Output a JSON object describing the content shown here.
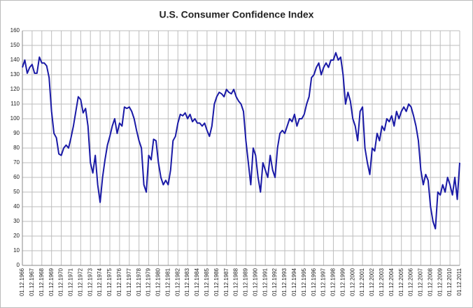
{
  "chart_data": {
    "type": "line",
    "title": "U.S. Consumer Confidence Index",
    "color": "#1a1aa6",
    "grid": true,
    "ylim": [
      0,
      160
    ],
    "yticks": [
      0,
      10,
      20,
      30,
      40,
      50,
      60,
      70,
      80,
      90,
      100,
      110,
      120,
      130,
      140,
      150,
      160
    ],
    "categories": [
      "01.12.1966",
      null,
      null,
      null,
      "01.12.1967",
      null,
      null,
      null,
      "01.12.1968",
      null,
      null,
      null,
      "01.12.1969",
      null,
      null,
      null,
      "01.12.1970",
      null,
      null,
      null,
      "01.12.1971",
      null,
      null,
      null,
      "01.12.1972",
      null,
      null,
      null,
      "01.12.1973",
      null,
      null,
      null,
      "01.12.1974",
      null,
      null,
      null,
      "01.12.1975",
      null,
      null,
      null,
      "01.12.1976",
      null,
      null,
      null,
      "01.12.1977",
      null,
      null,
      null,
      "01.12.1978",
      null,
      null,
      null,
      "01.12.1979",
      null,
      null,
      null,
      "01.12.1980",
      null,
      null,
      null,
      "01.12.1981",
      null,
      null,
      null,
      "01.12.1982",
      null,
      null,
      null,
      "01.12.1983",
      null,
      null,
      null,
      "01.12.1984",
      null,
      null,
      null,
      "01.12.1985",
      null,
      null,
      null,
      "01.12.1986",
      null,
      null,
      null,
      "01.12.1987",
      null,
      null,
      null,
      "01.12.1988",
      null,
      null,
      null,
      "01.12.1989",
      null,
      null,
      null,
      "01.12.1990",
      null,
      null,
      null,
      "01.12.1991",
      null,
      null,
      null,
      "01.12.1992",
      null,
      null,
      null,
      "01.12.1993",
      null,
      null,
      null,
      "01.12.1994",
      null,
      null,
      null,
      "01.12.1995",
      null,
      null,
      null,
      "01.12.1996",
      null,
      null,
      null,
      "01.12.1997",
      null,
      null,
      null,
      "01.12.1998",
      null,
      null,
      null,
      "01.12.1999",
      null,
      null,
      null,
      "01.12.2000",
      null,
      null,
      null,
      "01.12.2001",
      null,
      null,
      null,
      "01.12.2002",
      null,
      null,
      null,
      "01.12.2003",
      null,
      null,
      null,
      "01.12.2004",
      null,
      null,
      null,
      "01.12.2005",
      null,
      null,
      null,
      "01.12.2006",
      null,
      null,
      null,
      "01.12.2007",
      null,
      null,
      null,
      "01.12.2008",
      null,
      null,
      null,
      "01.12.2009",
      null,
      null,
      null,
      "01.12.2010",
      null,
      null,
      null,
      "01.12.2011"
    ],
    "values": [
      135,
      140,
      131,
      135,
      137,
      131,
      131,
      142,
      138,
      138,
      136,
      128,
      105,
      90,
      87,
      76,
      75,
      80,
      82,
      80,
      87,
      95,
      105,
      115,
      113,
      104,
      107,
      95,
      70,
      63,
      75,
      55,
      43,
      60,
      72,
      82,
      88,
      95,
      100,
      90,
      97,
      95,
      108,
      107,
      108,
      105,
      100,
      92,
      85,
      80,
      55,
      50,
      75,
      72,
      86,
      85,
      70,
      60,
      55,
      58,
      55,
      65,
      85,
      88,
      97,
      103,
      102,
      104,
      100,
      103,
      98,
      100,
      97,
      97,
      95,
      97,
      92,
      88,
      95,
      110,
      115,
      118,
      117,
      115,
      120,
      118,
      117,
      120,
      115,
      112,
      110,
      105,
      85,
      70,
      55,
      80,
      75,
      60,
      50,
      70,
      65,
      60,
      75,
      65,
      60,
      80,
      90,
      92,
      90,
      95,
      100,
      98,
      103,
      95,
      100,
      100,
      103,
      110,
      115,
      128,
      130,
      135,
      138,
      130,
      135,
      138,
      135,
      140,
      140,
      145,
      140,
      142,
      130,
      110,
      118,
      112,
      100,
      95,
      85,
      105,
      108,
      80,
      70,
      62,
      80,
      78,
      90,
      85,
      95,
      92,
      100,
      98,
      102,
      95,
      105,
      100,
      105,
      108,
      105,
      110,
      108,
      102,
      95,
      85,
      65,
      55,
      62,
      58,
      40,
      30,
      25,
      50,
      48,
      55,
      50,
      60,
      55,
      48,
      60,
      45,
      70
    ]
  }
}
